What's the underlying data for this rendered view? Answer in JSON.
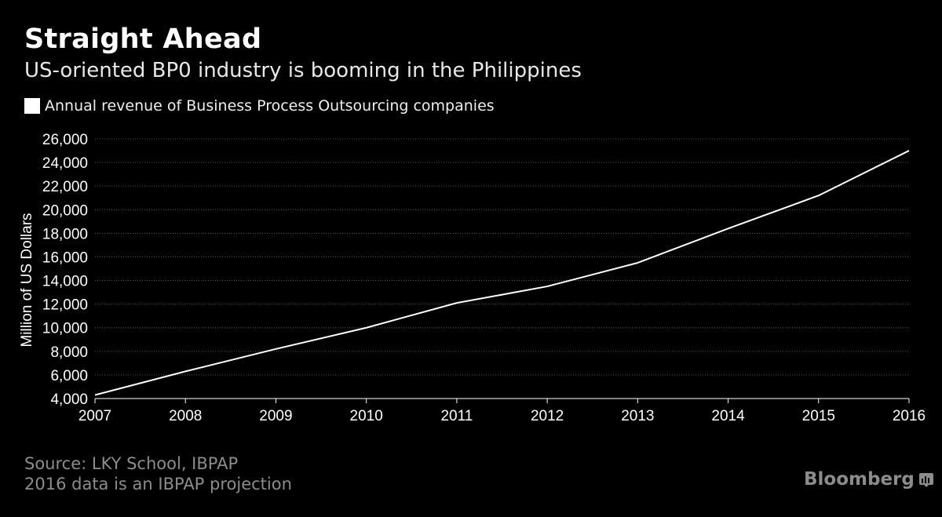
{
  "header": {
    "title": "Straight Ahead",
    "subtitle": "US-oriented BP0 industry is booming in the Philippines"
  },
  "legend": {
    "label": "Annual revenue of Business Process Outsourcing companies"
  },
  "footer": {
    "source": "Source: LKY School, IBPAP",
    "note": "2016 data is an IBPAP projection",
    "brand": "Bloomberg"
  },
  "colors": {
    "background": "#000000",
    "line": "#ffffff",
    "grid": "#555555",
    "muted": "#8c8c8c"
  },
  "chart_data": {
    "type": "line",
    "title": "Straight Ahead",
    "subtitle": "US-oriented BP0 industry is booming in the Philippines",
    "xlabel": "",
    "ylabel": "Million of US Dollars",
    "x": [
      2007,
      2008,
      2009,
      2010,
      2011,
      2012,
      2013,
      2014,
      2015,
      2016
    ],
    "series": [
      {
        "name": "Annual revenue of Business Process Outsourcing companies",
        "values": [
          4300,
          6300,
          8200,
          10000,
          12100,
          13500,
          15500,
          18400,
          21200,
          25000
        ]
      }
    ],
    "ylim": [
      4000,
      26000
    ],
    "yticks": [
      4000,
      6000,
      8000,
      10000,
      12000,
      14000,
      16000,
      18000,
      20000,
      22000,
      24000,
      26000
    ],
    "ytick_labels": [
      "4,000",
      "6,000",
      "8,000",
      "10,000",
      "12,000",
      "14,000",
      "16,000",
      "18,000",
      "20,000",
      "22,000",
      "24,000",
      "26,000"
    ],
    "grid": true,
    "legend_position": "top-left"
  }
}
